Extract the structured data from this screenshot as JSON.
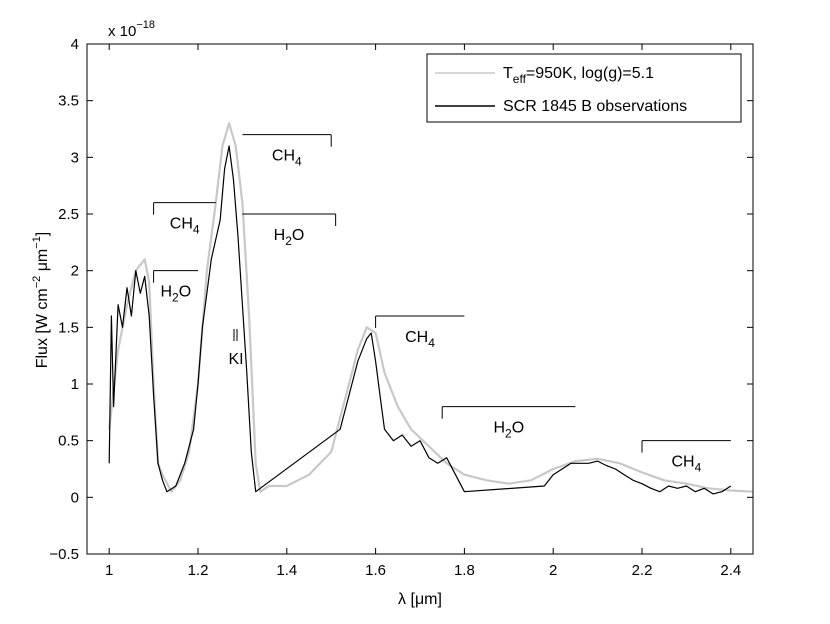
{
  "chart_data": {
    "type": "line",
    "title": "",
    "xlabel_symbol": "λ",
    "xlabel_unit": " [μm]",
    "ylabel_pre": "Flux [W cm",
    "ylabel_exp1": "−2",
    "ylabel_mid": " μm",
    "ylabel_exp2": "−1",
    "ylabel_post": "]",
    "y_multiplier_base": "x 10",
    "y_multiplier_exp": "−18",
    "xlim": [
      0.95,
      2.45
    ],
    "ylim": [
      -0.5,
      4.0
    ],
    "x_ticks": [
      1,
      1.2,
      1.4,
      1.6,
      1.8,
      2,
      2.2,
      2.4
    ],
    "x_tick_labels": [
      "1",
      "1.2",
      "1.4",
      "1.6",
      "1.8",
      "2",
      "2.2",
      "2.4"
    ],
    "y_ticks": [
      -0.5,
      0,
      0.5,
      1,
      1.5,
      2,
      2.5,
      3,
      3.5,
      4
    ],
    "y_tick_labels": [
      "−0.5",
      "0",
      "0.5",
      "1",
      "1.5",
      "2",
      "2.5",
      "3",
      "3.5",
      "4"
    ],
    "grid": false,
    "legend_position": "top-right",
    "legend": [
      {
        "label_main": "T",
        "label_sub": "eff",
        "label_rest": "=950K, log(g)=5.1",
        "color": "#c8c8c8"
      },
      {
        "label_main": "SCR 1845 B observations",
        "label_sub": "",
        "label_rest": "",
        "color": "#000000"
      }
    ],
    "series": [
      {
        "name": "model",
        "color": "#c8c8c8",
        "x": [
          1.0,
          1.02,
          1.04,
          1.06,
          1.08,
          1.09,
          1.1,
          1.11,
          1.12,
          1.14,
          1.16,
          1.18,
          1.2,
          1.22,
          1.24,
          1.255,
          1.27,
          1.285,
          1.3,
          1.315,
          1.33,
          1.34,
          1.36,
          1.4,
          1.45,
          1.5,
          1.52,
          1.54,
          1.56,
          1.58,
          1.6,
          1.62,
          1.65,
          1.68,
          1.72,
          1.76,
          1.8,
          1.85,
          1.9,
          1.95,
          2.0,
          2.05,
          2.1,
          2.15,
          2.2,
          2.25,
          2.3,
          2.35,
          2.4,
          2.45
        ],
        "y": [
          0.6,
          1.3,
          1.7,
          2.0,
          2.1,
          1.9,
          1.0,
          0.3,
          0.2,
          0.05,
          0.15,
          0.4,
          1.0,
          2.0,
          2.6,
          3.1,
          3.3,
          3.1,
          2.6,
          1.6,
          0.3,
          0.05,
          0.1,
          0.1,
          0.2,
          0.4,
          0.7,
          1.0,
          1.3,
          1.5,
          1.45,
          1.1,
          0.8,
          0.6,
          0.45,
          0.3,
          0.2,
          0.15,
          0.12,
          0.15,
          0.25,
          0.32,
          0.34,
          0.3,
          0.22,
          0.15,
          0.12,
          0.08,
          0.06,
          0.05
        ]
      },
      {
        "name": "SCR 1845 B observations",
        "color": "#000000",
        "x": [
          1.0,
          1.005,
          1.01,
          1.02,
          1.03,
          1.04,
          1.05,
          1.06,
          1.07,
          1.08,
          1.09,
          1.1,
          1.11,
          1.12,
          1.13,
          1.15,
          1.17,
          1.19,
          1.2,
          1.21,
          1.23,
          1.25,
          1.26,
          1.27,
          1.28,
          1.29,
          1.3,
          1.31,
          1.32,
          1.33,
          1.52,
          1.54,
          1.56,
          1.58,
          1.59,
          1.6,
          1.61,
          1.62,
          1.64,
          1.66,
          1.68,
          1.7,
          1.72,
          1.74,
          1.76,
          1.78,
          1.8,
          1.98,
          2.0,
          2.02,
          2.04,
          2.06,
          2.08,
          2.1,
          2.12,
          2.14,
          2.16,
          2.18,
          2.2,
          2.22,
          2.24,
          2.26,
          2.28,
          2.3,
          2.32,
          2.34,
          2.36,
          2.38,
          2.4
        ],
        "y": [
          0.3,
          1.6,
          0.8,
          1.7,
          1.5,
          1.85,
          1.6,
          2.0,
          1.8,
          1.95,
          1.6,
          0.9,
          0.3,
          0.15,
          0.05,
          0.1,
          0.3,
          0.6,
          1.0,
          1.5,
          2.1,
          2.45,
          2.9,
          3.1,
          2.8,
          2.3,
          1.7,
          1.1,
          0.4,
          0.05,
          0.6,
          0.9,
          1.2,
          1.4,
          1.45,
          1.2,
          0.9,
          0.6,
          0.5,
          0.55,
          0.45,
          0.5,
          0.35,
          0.3,
          0.35,
          0.2,
          0.05,
          0.1,
          0.2,
          0.25,
          0.3,
          0.3,
          0.3,
          0.32,
          0.28,
          0.25,
          0.2,
          0.15,
          0.12,
          0.08,
          0.05,
          0.1,
          0.08,
          0.1,
          0.05,
          0.08,
          0.03,
          0.05,
          0.1
        ]
      }
    ],
    "bands": [
      {
        "id": "h2o-1",
        "label_main": "H",
        "label_sub": "2",
        "label_rest": "O",
        "x1": 1.1,
        "x2": 1.2,
        "y": 2.0,
        "tick_at": "start"
      },
      {
        "id": "ch4-1",
        "label_main": "CH",
        "label_sub": "4",
        "label_rest": "",
        "x1": 1.1,
        "x2": 1.24,
        "y": 2.6,
        "tick_at": "start"
      },
      {
        "id": "ch4-2",
        "label_main": "CH",
        "label_sub": "4",
        "label_rest": "",
        "x1": 1.3,
        "x2": 1.5,
        "y": 3.2,
        "tick_at": "end"
      },
      {
        "id": "h2o-2",
        "label_main": "H",
        "label_sub": "2",
        "label_rest": "O",
        "x1": 1.3,
        "x2": 1.51,
        "y": 2.5,
        "tick_at": "end"
      },
      {
        "id": "ch4-3",
        "label_main": "CH",
        "label_sub": "4",
        "label_rest": "",
        "x1": 1.6,
        "x2": 1.8,
        "y": 1.6,
        "tick_at": "start"
      },
      {
        "id": "h2o-3",
        "label_main": "H",
        "label_sub": "2",
        "label_rest": "O",
        "x1": 1.75,
        "x2": 2.05,
        "y": 0.8,
        "tick_at": "start"
      },
      {
        "id": "ch4-4",
        "label_main": "CH",
        "label_sub": "4",
        "label_rest": "",
        "x1": 2.2,
        "x2": 2.4,
        "y": 0.5,
        "tick_at": "start"
      }
    ],
    "annotations": [
      {
        "id": "ki",
        "text": "KI",
        "x": 1.25,
        "y": 1.25
      }
    ]
  }
}
